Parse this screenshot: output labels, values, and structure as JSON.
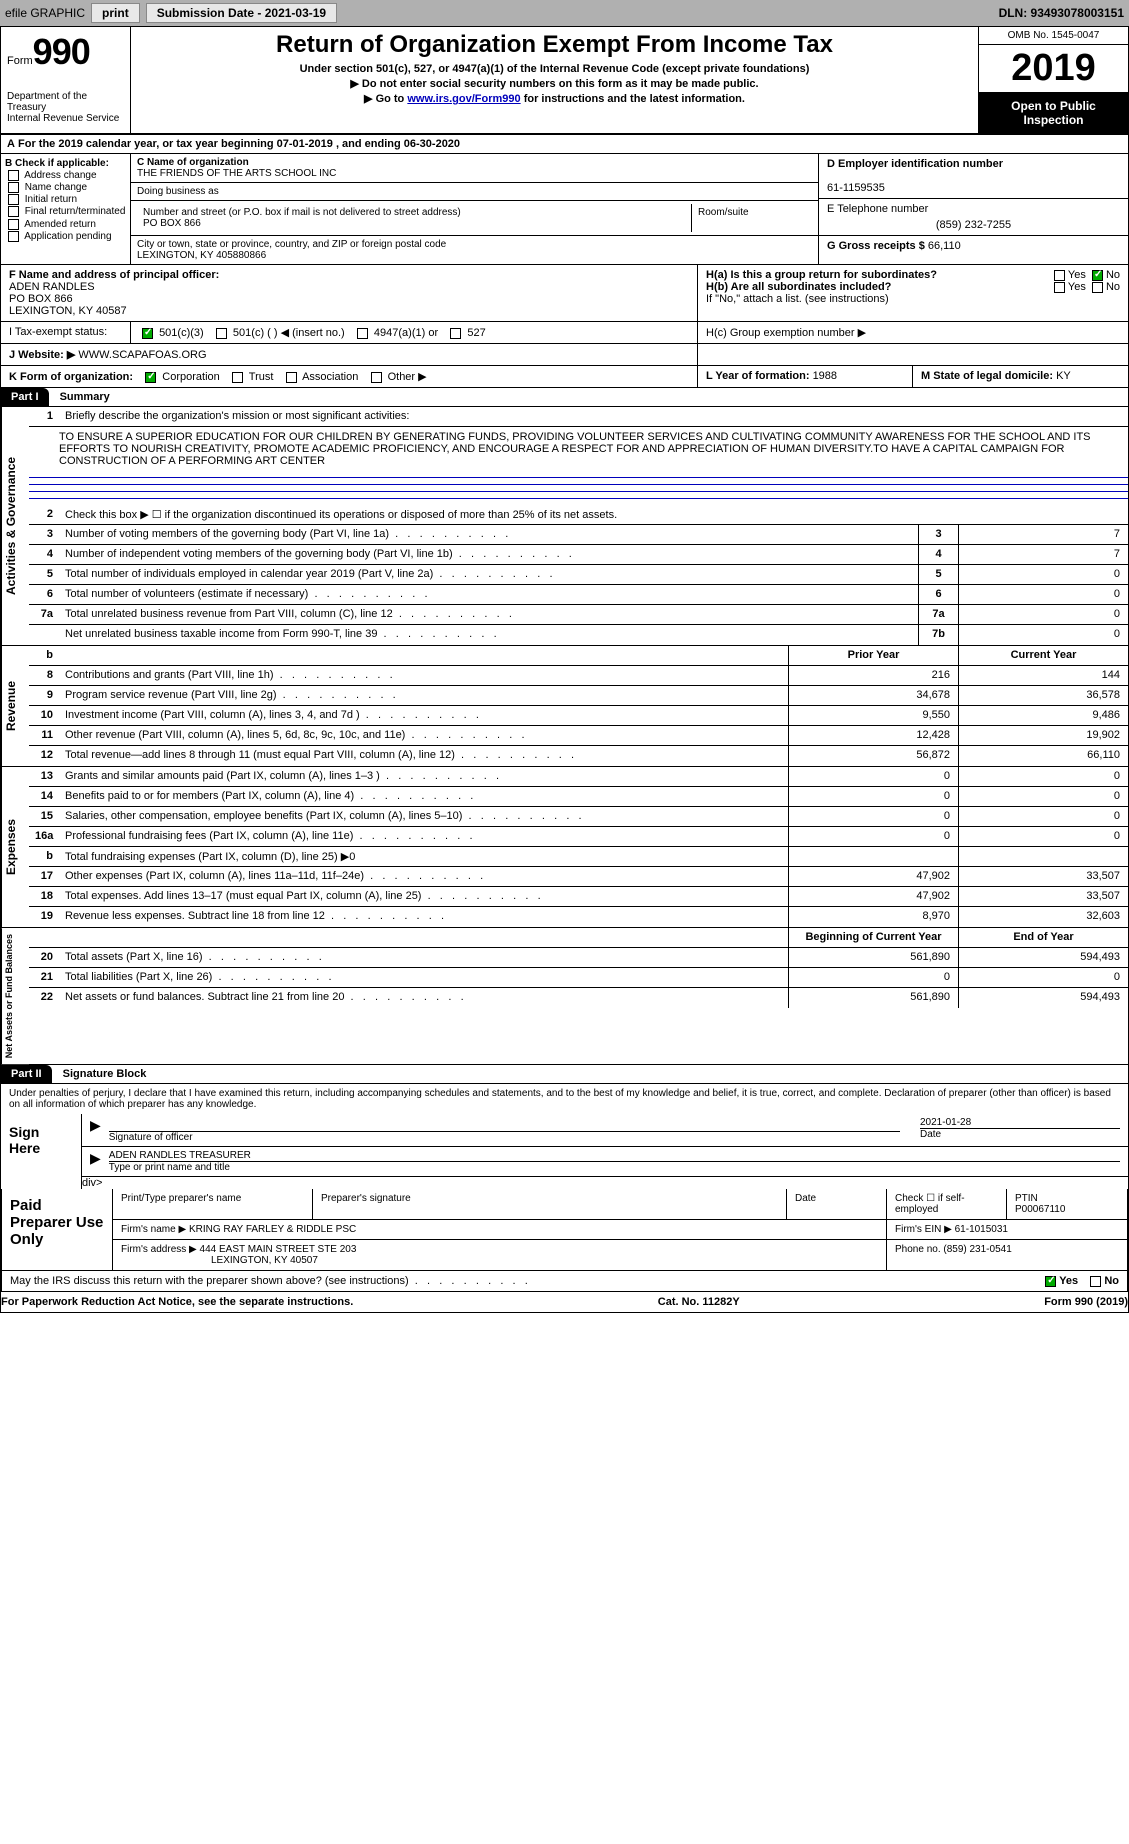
{
  "toolbar": {
    "efile": "efile GRAPHIC",
    "print": "print",
    "sub_date_label": "Submission Date - 2021-03-19",
    "dln": "DLN: 93493078003151"
  },
  "header": {
    "form_label": "Form",
    "form_num": "990",
    "dept": "Department of the Treasury\nInternal Revenue Service",
    "title": "Return of Organization Exempt From Income Tax",
    "sub1": "Under section 501(c), 527, or 4947(a)(1) of the Internal Revenue Code (except private foundations)",
    "sub2": "Do not enter social security numbers on this form as it may be made public.",
    "sub3_pre": "Go to ",
    "sub3_link": "www.irs.gov/Form990",
    "sub3_post": " for instructions and the latest information.",
    "omb": "OMB No. 1545-0047",
    "year": "2019",
    "inspect": "Open to Public Inspection"
  },
  "line_a": "For the 2019 calendar year, or tax year beginning 07-01-2019    , and ending 06-30-2020",
  "col_b": {
    "hdr": "B Check if applicable:",
    "opts": [
      "Address change",
      "Name change",
      "Initial return",
      "Final return/terminated",
      "Amended return",
      "Application pending"
    ]
  },
  "col_c": {
    "name_lbl": "C Name of organization",
    "name": "THE FRIENDS OF THE ARTS SCHOOL INC",
    "dba_lbl": "Doing business as",
    "dba": "",
    "addr_lbl": "Number and street (or P.O. box if mail is not delivered to street address)",
    "addr": "PO BOX 866",
    "room_lbl": "Room/suite",
    "city_lbl": "City or town, state or province, country, and ZIP or foreign postal code",
    "city": "LEXINGTON, KY  405880866"
  },
  "col_d": {
    "d_lbl": "D Employer identification number",
    "d_val": "61-1159535",
    "e_lbl": "E Telephone number",
    "e_val": "(859) 232-7255",
    "g_lbl": "G Gross receipts $ ",
    "g_val": "66,110"
  },
  "f": {
    "lbl": "F  Name and address of principal officer:",
    "name": "ADEN RANDLES",
    "addr1": "PO BOX 866",
    "addr2": "LEXINGTON, KY  40587"
  },
  "h": {
    "ha": "H(a)  Is this a group return for subordinates?",
    "hb": "H(b)  Are all subordinates included?",
    "hb_note": "If \"No,\" attach a list. (see instructions)",
    "hc": "H(c)  Group exemption number ▶"
  },
  "i": {
    "lbl": "I  Tax-exempt status:",
    "opts": [
      "501(c)(3)",
      "501(c) (  ) ◀ (insert no.)",
      "4947(a)(1) or",
      "527"
    ]
  },
  "j": {
    "lbl": "J Website: ▶ ",
    "val": "WWW.SCAPAFOAS.ORG"
  },
  "k": {
    "lbl": "K Form of organization:",
    "opts": [
      "Corporation",
      "Trust",
      "Association",
      "Other ▶"
    ]
  },
  "l": {
    "lbl": "L Year of formation: ",
    "val": "1988"
  },
  "m": {
    "lbl": "M State of legal domicile: ",
    "val": "KY"
  },
  "part1": {
    "hdr": "Part I",
    "title": "Summary",
    "q1_lbl": "Briefly describe the organization's mission or most significant activities:",
    "q1_text": "TO ENSURE A SUPERIOR EDUCATION FOR OUR CHILDREN BY GENERATING FUNDS, PROVIDING VOLUNTEER SERVICES AND CULTIVATING COMMUNITY AWARENESS FOR THE SCHOOL AND ITS EFFORTS TO NOURISH CREATIVITY, PROMOTE ACADEMIC PROFICIENCY, AND ENCOURAGE A RESPECT FOR AND APPRECIATION OF HUMAN DIVERSITY.TO HAVE A CAPITAL CAMPAIGN FOR CONSTRUCTION OF A PERFORMING ART CENTER",
    "q2": "Check this box ▶ ☐ if the organization discontinued its operations or disposed of more than 25% of its net assets.",
    "rows_ag": [
      {
        "n": "3",
        "d": "Number of voting members of the governing body (Part VI, line 1a)",
        "b": "3",
        "v": "7"
      },
      {
        "n": "4",
        "d": "Number of independent voting members of the governing body (Part VI, line 1b)",
        "b": "4",
        "v": "7"
      },
      {
        "n": "5",
        "d": "Total number of individuals employed in calendar year 2019 (Part V, line 2a)",
        "b": "5",
        "v": "0"
      },
      {
        "n": "6",
        "d": "Total number of volunteers (estimate if necessary)",
        "b": "6",
        "v": "0"
      },
      {
        "n": "7a",
        "d": "Total unrelated business revenue from Part VIII, column (C), line 12",
        "b": "7a",
        "v": "0"
      },
      {
        "n": "",
        "d": "Net unrelated business taxable income from Form 990-T, line 39",
        "b": "7b",
        "v": "0"
      }
    ],
    "col_hdrs": {
      "b": "b",
      "py": "Prior Year",
      "cy": "Current Year"
    },
    "rows_rev": [
      {
        "n": "8",
        "d": "Contributions and grants (Part VIII, line 1h)",
        "py": "216",
        "cy": "144"
      },
      {
        "n": "9",
        "d": "Program service revenue (Part VIII, line 2g)",
        "py": "34,678",
        "cy": "36,578"
      },
      {
        "n": "10",
        "d": "Investment income (Part VIII, column (A), lines 3, 4, and 7d )",
        "py": "9,550",
        "cy": "9,486"
      },
      {
        "n": "11",
        "d": "Other revenue (Part VIII, column (A), lines 5, 6d, 8c, 9c, 10c, and 11e)",
        "py": "12,428",
        "cy": "19,902"
      },
      {
        "n": "12",
        "d": "Total revenue—add lines 8 through 11 (must equal Part VIII, column (A), line 12)",
        "py": "56,872",
        "cy": "66,110"
      }
    ],
    "rows_exp": [
      {
        "n": "13",
        "d": "Grants and similar amounts paid (Part IX, column (A), lines 1–3 )",
        "py": "0",
        "cy": "0"
      },
      {
        "n": "14",
        "d": "Benefits paid to or for members (Part IX, column (A), line 4)",
        "py": "0",
        "cy": "0"
      },
      {
        "n": "15",
        "d": "Salaries, other compensation, employee benefits (Part IX, column (A), lines 5–10)",
        "py": "0",
        "cy": "0"
      },
      {
        "n": "16a",
        "d": "Professional fundraising fees (Part IX, column (A), line 11e)",
        "py": "0",
        "cy": "0"
      },
      {
        "n": "b",
        "d": "Total fundraising expenses (Part IX, column (D), line 25) ▶0",
        "py": "",
        "cy": ""
      },
      {
        "n": "17",
        "d": "Other expenses (Part IX, column (A), lines 11a–11d, 11f–24e)",
        "py": "47,902",
        "cy": "33,507"
      },
      {
        "n": "18",
        "d": "Total expenses. Add lines 13–17 (must equal Part IX, column (A), line 25)",
        "py": "47,902",
        "cy": "33,507"
      },
      {
        "n": "19",
        "d": "Revenue less expenses. Subtract line 18 from line 12",
        "py": "8,970",
        "cy": "32,603"
      }
    ],
    "col_hdrs2": {
      "py": "Beginning of Current Year",
      "cy": "End of Year"
    },
    "rows_na": [
      {
        "n": "20",
        "d": "Total assets (Part X, line 16)",
        "py": "561,890",
        "cy": "594,493"
      },
      {
        "n": "21",
        "d": "Total liabilities (Part X, line 26)",
        "py": "0",
        "cy": "0"
      },
      {
        "n": "22",
        "d": "Net assets or fund balances. Subtract line 21 from line 20",
        "py": "561,890",
        "cy": "594,493"
      }
    ],
    "side_ag": "Activities & Governance",
    "side_rev": "Revenue",
    "side_exp": "Expenses",
    "side_na": "Net Assets or Fund Balances"
  },
  "part2": {
    "hdr": "Part II",
    "title": "Signature Block",
    "decl": "Under penalties of perjury, I declare that I have examined this return, including accompanying schedules and statements, and to the best of my knowledge and belief, it is true, correct, and complete. Declaration of preparer (other than officer) is based on all information of which preparer has any knowledge.",
    "sign_here": "Sign Here",
    "sig_officer": "Signature of officer",
    "sig_date": "2021-01-28",
    "date_lbl": "Date",
    "name_title": "ADEN RANDLES  TREASURER",
    "type_lbl": "Type or print name and title",
    "paid_lbl": "Paid Preparer Use Only",
    "prep_name_lbl": "Print/Type preparer's name",
    "prep_sig_lbl": "Preparer's signature",
    "prep_date_lbl": "Date",
    "check_self": "Check ☐ if self-employed",
    "ptin_lbl": "PTIN",
    "ptin": "P00067110",
    "firm_name_lbl": "Firm's name    ▶ ",
    "firm_name": "KRING RAY FARLEY & RIDDLE PSC",
    "firm_ein_lbl": "Firm's EIN ▶ ",
    "firm_ein": "61-1015031",
    "firm_addr_lbl": "Firm's address ▶ ",
    "firm_addr": "444 EAST MAIN STREET STE 203",
    "firm_city": "LEXINGTON, KY  40507",
    "phone_lbl": "Phone no. ",
    "phone": "(859) 231-0541",
    "discuss": "May the IRS discuss this return with the preparer shown above? (see instructions)",
    "yes": "Yes",
    "no": "No"
  },
  "footer": {
    "pra": "For Paperwork Reduction Act Notice, see the separate instructions.",
    "cat": "Cat. No. 11282Y",
    "form": "Form 990 (2019)"
  }
}
